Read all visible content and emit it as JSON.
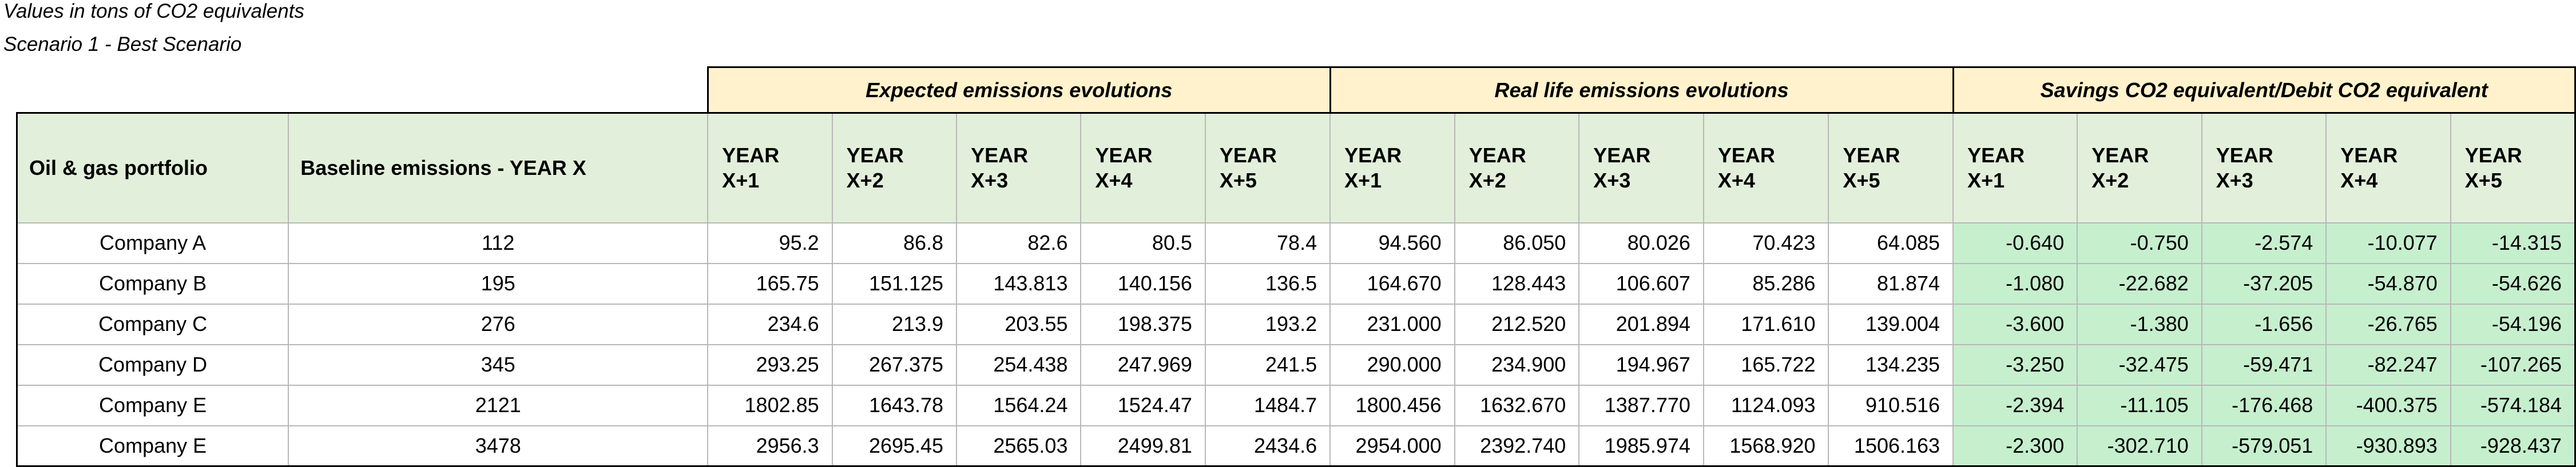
{
  "captions": {
    "unit": "Values in tons of CO2 equivalents",
    "scenario": "Scenario 1 - Best Scenario"
  },
  "groups": {
    "expected": "Expected emissions evolutions",
    "real": "Real life emissions evolutions",
    "savings": "Savings CO2 equivalent/Debit CO2 equivalent"
  },
  "headers": {
    "portfolio": "Oil & gas portfolio",
    "baseline": "Baseline emissions - YEAR X",
    "year_word": "YEAR",
    "years": [
      "X+1",
      "X+2",
      "X+3",
      "X+4",
      "X+5"
    ]
  },
  "rows": [
    {
      "company": "Company A",
      "baseline": "112",
      "expected": [
        "95.2",
        "86.8",
        "82.6",
        "80.5",
        "78.4"
      ],
      "real": [
        "94.560",
        "86.050",
        "80.026",
        "70.423",
        "64.085"
      ],
      "savings": [
        "-0.640",
        "-0.750",
        "-2.574",
        "-10.077",
        "-14.315"
      ]
    },
    {
      "company": "Company B",
      "baseline": "195",
      "expected": [
        "165.75",
        "151.125",
        "143.813",
        "140.156",
        "136.5"
      ],
      "real": [
        "164.670",
        "128.443",
        "106.607",
        "85.286",
        "81.874"
      ],
      "savings": [
        "-1.080",
        "-22.682",
        "-37.205",
        "-54.870",
        "-54.626"
      ]
    },
    {
      "company": "Company C",
      "baseline": "276",
      "expected": [
        "234.6",
        "213.9",
        "203.55",
        "198.375",
        "193.2"
      ],
      "real": [
        "231.000",
        "212.520",
        "201.894",
        "171.610",
        "139.004"
      ],
      "savings": [
        "-3.600",
        "-1.380",
        "-1.656",
        "-26.765",
        "-54.196"
      ]
    },
    {
      "company": "Company D",
      "baseline": "345",
      "expected": [
        "293.25",
        "267.375",
        "254.438",
        "247.969",
        "241.5"
      ],
      "real": [
        "290.000",
        "234.900",
        "194.967",
        "165.722",
        "134.235"
      ],
      "savings": [
        "-3.250",
        "-32.475",
        "-59.471",
        "-82.247",
        "-107.265"
      ]
    },
    {
      "company": "Company E",
      "baseline": "2121",
      "expected": [
        "1802.85",
        "1643.78",
        "1564.24",
        "1524.47",
        "1484.7"
      ],
      "real": [
        "1800.456",
        "1632.670",
        "1387.770",
        "1124.093",
        "910.516"
      ],
      "savings": [
        "-2.394",
        "-11.105",
        "-176.468",
        "-400.375",
        "-574.184"
      ]
    },
    {
      "company": "Company E",
      "baseline": "3478",
      "expected": [
        "2956.3",
        "2695.45",
        "2565.03",
        "2499.81",
        "2434.6"
      ],
      "real": [
        "2954.000",
        "2392.740",
        "1985.974",
        "1568.920",
        "1506.163"
      ],
      "savings": [
        "-2.300",
        "-302.710",
        "-579.051",
        "-930.893",
        "-928.437"
      ]
    }
  ]
}
